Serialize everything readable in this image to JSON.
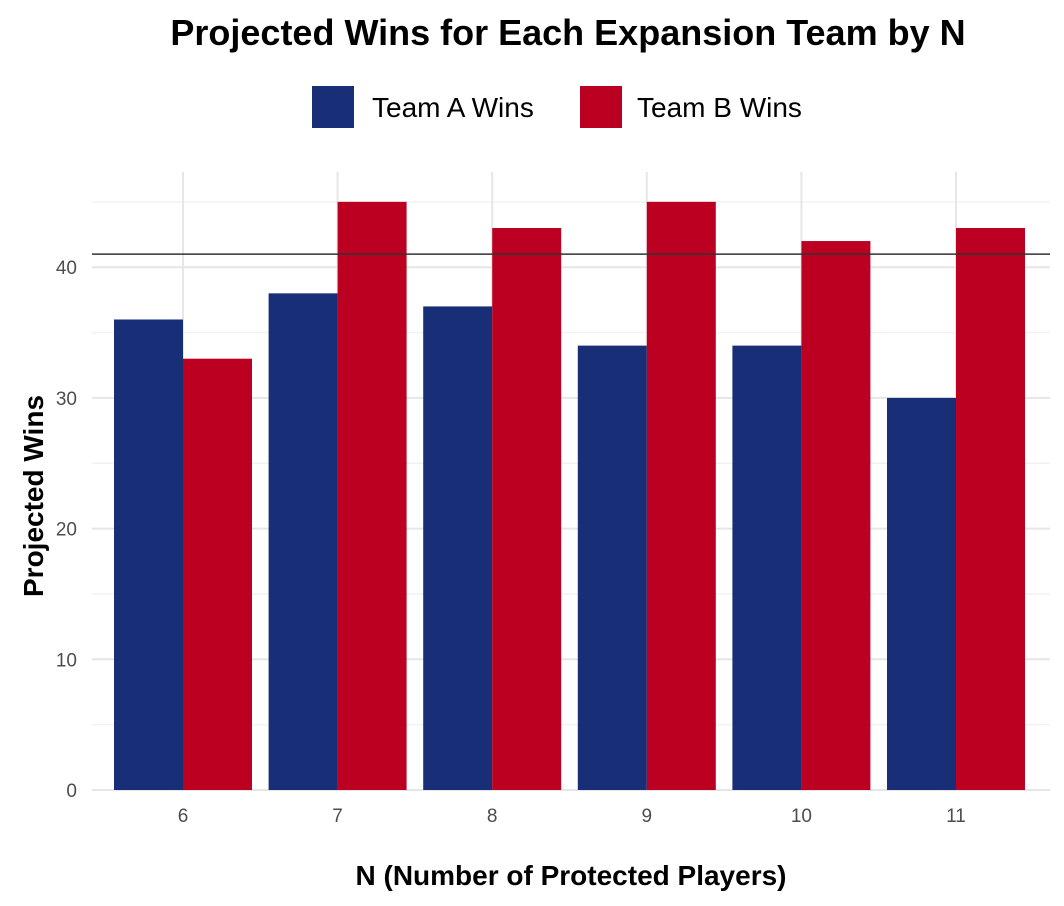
{
  "chart_data": {
    "type": "bar",
    "title": "Projected Wins for Each Expansion Team by N",
    "xlabel": "N (Number of Protected Players)",
    "ylabel": "Projected Wins",
    "categories": [
      "6",
      "7",
      "8",
      "9",
      "10",
      "11"
    ],
    "series": [
      {
        "name": "Team A Wins",
        "values": [
          36,
          38,
          37,
          34,
          34,
          30
        ],
        "color": "#182F77"
      },
      {
        "name": "Team B Wins",
        "values": [
          33,
          45,
          43,
          45,
          42,
          43
        ],
        "color": "#BB0022"
      }
    ],
    "y_ticks": [
      "0",
      "10",
      "20",
      "30",
      "40"
    ],
    "ylim": [
      0,
      47
    ],
    "reference_line": {
      "y": 41,
      "color": "#333333"
    },
    "legend_position": "top",
    "grid": true
  }
}
